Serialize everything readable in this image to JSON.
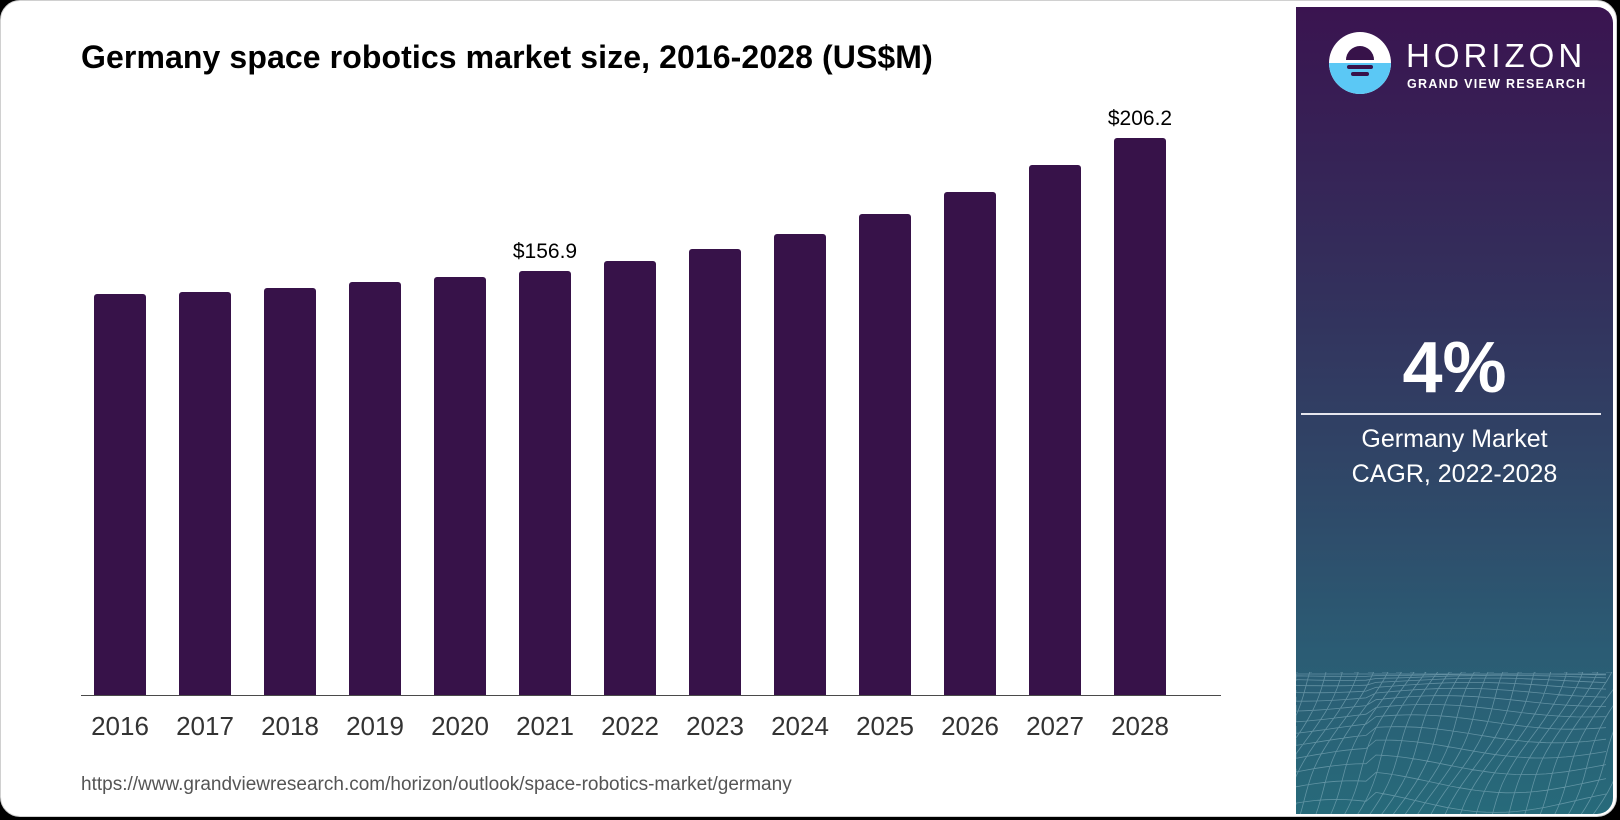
{
  "title": "Germany space robotics market size, 2016-2028 (US$M)",
  "source_url": "https://www.grandviewresearch.com/horizon/outlook/space-robotics-market/germany",
  "brand": {
    "name": "HORIZON",
    "sub": "GRAND VIEW RESEARCH",
    "logo_icon": "horizon-sun-logo-icon"
  },
  "cagr": {
    "value": "4%",
    "label_line1": "Germany Market",
    "label_line2": "CAGR, 2022-2028"
  },
  "colors": {
    "bar": "#371249",
    "side_top": "#3a1450",
    "side_bottom": "#276a7a",
    "logo_water": "#5bc8f5"
  },
  "annotations": {
    "a2021": "$156.9",
    "a2028": "$206.2"
  },
  "xticks": [
    "2016",
    "2017",
    "2018",
    "2019",
    "2020",
    "2021",
    "2022",
    "2023",
    "2024",
    "2025",
    "2026",
    "2027",
    "2028"
  ],
  "chart_data": {
    "type": "bar",
    "title": "Germany space robotics market size, 2016-2028 (US$M)",
    "xlabel": "",
    "ylabel": "US$M",
    "categories": [
      "2016",
      "2017",
      "2018",
      "2019",
      "2020",
      "2021",
      "2022",
      "2023",
      "2024",
      "2025",
      "2026",
      "2027",
      "2028"
    ],
    "values": [
      148.4,
      149.2,
      150.7,
      152.9,
      154.7,
      156.9,
      160.7,
      165.1,
      170.7,
      178.1,
      186.2,
      196.2,
      206.2
    ],
    "data_labels": {
      "2021": "$156.9",
      "2028": "$206.2"
    },
    "ylim": [
      0,
      210
    ],
    "grid": false,
    "legend": null,
    "cagr_2022_2028": "4%"
  }
}
